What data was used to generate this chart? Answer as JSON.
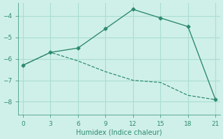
{
  "xlabel": "Humidex (Indice chaleur)",
  "ylabel": "",
  "line1_x": [
    0,
    3,
    6,
    9,
    12,
    15,
    18,
    21
  ],
  "line1_y": [
    -6.3,
    -5.7,
    -5.5,
    -4.6,
    -3.7,
    -4.1,
    -4.5,
    -7.9
  ],
  "line2_x": [
    0,
    3,
    6,
    9,
    12,
    15,
    18,
    21
  ],
  "line2_y": [
    -6.3,
    -5.7,
    -6.1,
    -6.6,
    -7.0,
    -7.1,
    -7.7,
    -7.9
  ],
  "line_color": "#2e8b6e",
  "bg_color": "#cff0e8",
  "grid_color": "#aaddd3",
  "xlim": [
    -0.5,
    21.5
  ],
  "ylim": [
    -8.6,
    -3.4
  ],
  "xticks": [
    0,
    3,
    6,
    9,
    12,
    15,
    18,
    21
  ],
  "yticks": [
    -8,
    -7,
    -6,
    -5,
    -4
  ],
  "marker": "D",
  "markersize": 2.5,
  "linewidth1": 1.0,
  "linewidth2": 0.9,
  "tick_fontsize": 6.5,
  "xlabel_fontsize": 7.0
}
